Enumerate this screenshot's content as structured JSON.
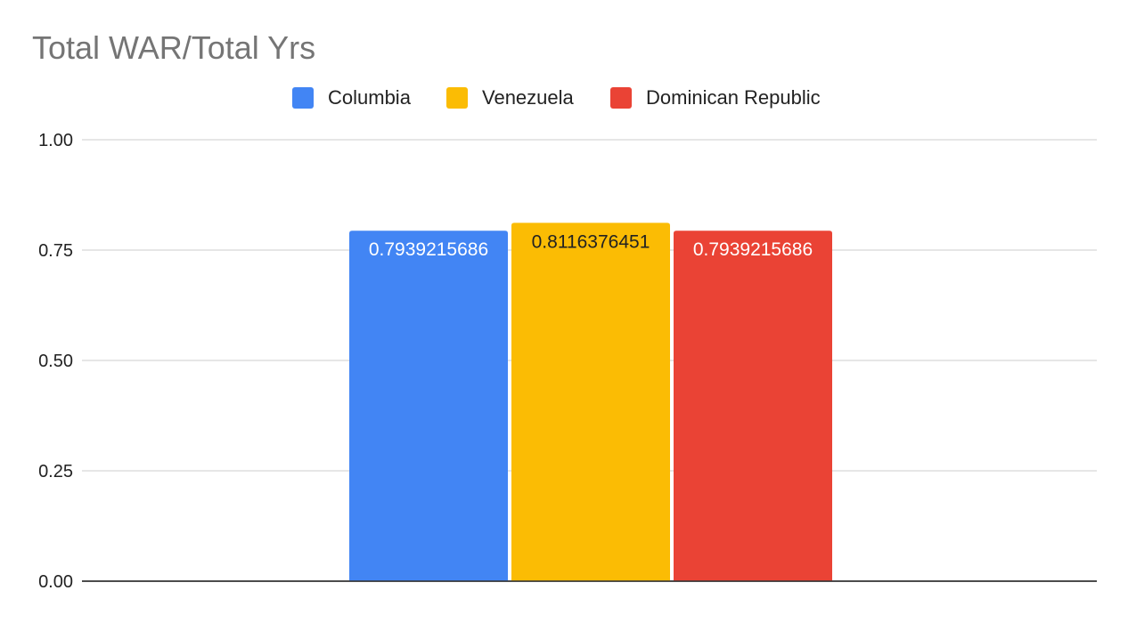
{
  "chart_data": {
    "type": "bar",
    "title": "Total WAR/Total Yrs",
    "xlabel": "",
    "ylabel": "",
    "categories": [
      ""
    ],
    "series": [
      {
        "name": "Columbia",
        "values": [
          0.7939215686
        ],
        "color": "#4285F4",
        "label_color": "#ffffff",
        "data_label": "0.7939215686"
      },
      {
        "name": "Venezuela",
        "values": [
          0.8116376451
        ],
        "color": "#FBBC04",
        "label_color": "#222222",
        "data_label": "0.8116376451"
      },
      {
        "name": "Dominican Republic",
        "values": [
          0.7939215686
        ],
        "color": "#EA4335",
        "label_color": "#ffffff",
        "data_label": "0.7939215686"
      }
    ],
    "ylim": [
      0,
      1
    ],
    "yticks": [
      0,
      0.25,
      0.5,
      0.75,
      1
    ],
    "ytick_labels": [
      "0.00",
      "0.25",
      "0.50",
      "0.75",
      "1.00"
    ],
    "grid": true,
    "legend": "top-center"
  }
}
